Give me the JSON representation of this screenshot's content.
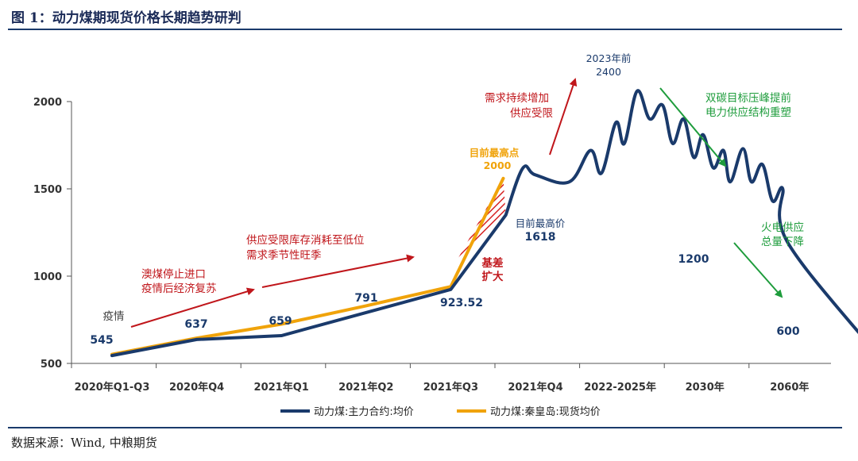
{
  "header": {
    "title": "图 1：动力煤期现货价格长期趋势研判"
  },
  "footer": {
    "source": "数据来源：Wind, 中粮期货"
  },
  "chart_data": {
    "type": "line",
    "title": "",
    "xlabel": "",
    "ylabel": "",
    "ylim": [
      500,
      2000
    ],
    "yticks": [
      "2000",
      "1500",
      "1000",
      "500"
    ],
    "categories": [
      "2020年Q1-Q3",
      "2020年Q4",
      "2021年Q1",
      "2021年Q2",
      "2021年Q3",
      "2021年Q4",
      "2022-2025年",
      "2030年",
      "2060年"
    ],
    "series": [
      {
        "name": "动力煤:主力合约:均价",
        "color": "#1a3a6b",
        "points": [
          [
            0,
            545
          ],
          [
            1,
            637
          ],
          [
            2,
            659
          ],
          [
            3,
            791
          ],
          [
            4,
            923.52
          ],
          [
            4.65,
            1350
          ],
          [
            4.85,
            1618
          ],
          [
            5.0,
            1580
          ],
          [
            5.4,
            1540
          ],
          [
            5.65,
            1720
          ],
          [
            5.78,
            1590
          ],
          [
            5.95,
            1880
          ],
          [
            6.05,
            1760
          ],
          [
            6.2,
            2060
          ],
          [
            6.35,
            1900
          ],
          [
            6.5,
            1980
          ],
          [
            6.62,
            1760
          ],
          [
            6.75,
            1900
          ],
          [
            6.87,
            1680
          ],
          [
            6.98,
            1810
          ],
          [
            7.1,
            1620
          ],
          [
            7.22,
            1720
          ],
          [
            7.3,
            1540
          ],
          [
            7.45,
            1730
          ],
          [
            7.55,
            1540
          ],
          [
            7.68,
            1640
          ],
          [
            7.8,
            1430
          ],
          [
            7.92,
            1500
          ],
          [
            7.97,
            1200
          ],
          [
            8.95,
            600
          ]
        ]
      },
      {
        "name": "动力煤:秦皇岛:现货均价",
        "color": "#f0a30a",
        "points": [
          [
            0,
            552
          ],
          [
            1,
            645
          ],
          [
            2,
            725
          ],
          [
            3,
            830
          ],
          [
            4,
            940
          ],
          [
            4.62,
            1560
          ]
        ]
      }
    ],
    "data_labels": [
      {
        "text": "545",
        "x": 0,
        "y": 545
      },
      {
        "text": "637",
        "x": 1,
        "y": 637
      },
      {
        "text": "659",
        "x": 2,
        "y": 659
      },
      {
        "text": "791",
        "x": 3,
        "y": 791
      },
      {
        "text": "923.52",
        "x": 4,
        "y": 923.52
      },
      {
        "text": "1618",
        "x": 4.85,
        "y": 1618
      },
      {
        "text": "1200",
        "x": 7.97,
        "y": 1200
      },
      {
        "text": "600",
        "x": 8.95,
        "y": 600
      }
    ],
    "annotations": {
      "covid": "疫情",
      "aus_line1": "澳煤停止进口",
      "aus_line2": "疫情后经济复苏",
      "supply_line1": "供应受限库存消耗至低位",
      "supply_line2": "需求季节性旺季",
      "demand_line1": "需求持续增加",
      "demand_line2": "供应受限",
      "spot_high_line1": "目前最高点",
      "spot_high_line2": "2000",
      "fut_high": "目前最高价",
      "basis_line1": "基差",
      "basis_line2": "扩大",
      "peak_line1": "2023年前",
      "peak_line2": "2400",
      "carbon_line1": "双碳目标压峰提前",
      "carbon_line2": "电力供应结构重塑",
      "thermal_line1": "火电供应",
      "thermal_line2": "总量下降"
    },
    "legend_position": "bottom",
    "grid": false
  }
}
